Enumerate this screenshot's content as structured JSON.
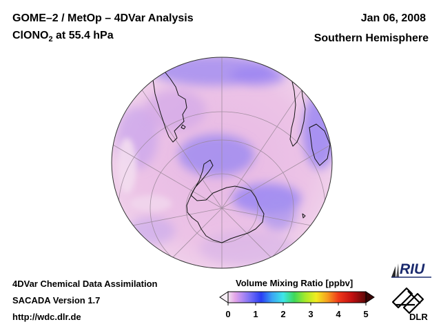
{
  "header": {
    "title_line1": "GOME–2 / MetOp – 4DVar Analysis",
    "species": "ClONO",
    "species_sub": "2",
    "level_text": " at 55.4 hPa",
    "date": "Jan 06, 2008",
    "hemisphere": "Southern Hemisphere"
  },
  "footer": {
    "line1": "4DVar Chemical Data Assimilation",
    "line2": "SACADA Version 1.7",
    "line3": "http://wdc.dlr.de"
  },
  "colorbar": {
    "title": "Volume Mixing Ratio [ppbv]",
    "ticks": [
      "0",
      "1",
      "2",
      "3",
      "4",
      "5"
    ],
    "range": [
      0,
      5
    ]
  },
  "logos": {
    "riu": "RIU",
    "dlr": "DLR"
  },
  "map": {
    "projection": "orthographic",
    "center": "South Pole",
    "colors": {
      "background_field": "#e9bfe3",
      "low_values": "#9a8af0",
      "coastline": "#111111",
      "graticule": "#9a8898"
    }
  }
}
